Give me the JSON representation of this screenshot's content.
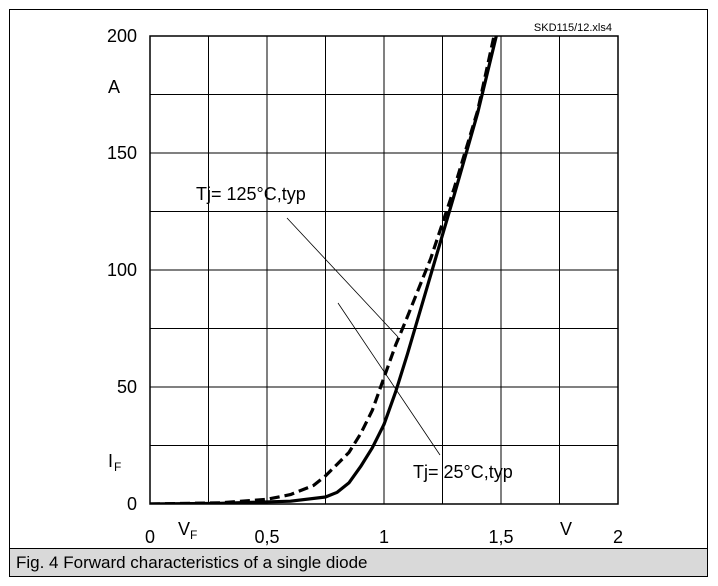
{
  "source_note": "SKD115/12.xls4",
  "caption": "Fig. 4 Forward characteristics of a single diode",
  "chart_data": {
    "type": "line",
    "title": "",
    "xlabel": "V",
    "xsymbol": "V",
    "xsubscript": "F",
    "ylabel": "A",
    "ysymbol": "I",
    "ysubscript": "F",
    "xlim": [
      0,
      2
    ],
    "ylim": [
      0,
      200
    ],
    "x_ticks": [
      0,
      0.5,
      1,
      1.5,
      2
    ],
    "x_tick_labels": [
      "0",
      "0,5",
      "1",
      "1,5",
      "2"
    ],
    "y_ticks": [
      0,
      50,
      100,
      150,
      200
    ],
    "y_tick_labels": [
      "0",
      "50",
      "100",
      "150",
      "200"
    ],
    "grid": true,
    "series": [
      {
        "name": "Tj= 25°C,typ",
        "style": "solid",
        "x": [
          0,
          0.3,
          0.6,
          0.75,
          0.8,
          0.85,
          0.9,
          0.95,
          1.0,
          1.05,
          1.1,
          1.2,
          1.3,
          1.4,
          1.48
        ],
        "y": [
          0,
          0.3,
          1.2,
          3,
          5,
          9,
          16,
          24,
          34,
          48,
          64,
          98,
          132,
          167,
          200
        ]
      },
      {
        "name": "Tj= 125°C,typ",
        "style": "dashed",
        "x": [
          0,
          0.3,
          0.5,
          0.6,
          0.7,
          0.75,
          0.8,
          0.85,
          0.9,
          0.95,
          1.0,
          1.05,
          1.1,
          1.2,
          1.3,
          1.4,
          1.47
        ],
        "y": [
          0,
          0.5,
          2,
          4,
          8,
          12,
          17,
          22,
          30,
          40,
          54,
          68,
          80,
          105,
          135,
          168,
          200
        ]
      }
    ],
    "annotations": [
      {
        "text": "Tj= 125°C,typ",
        "series_index": 1
      },
      {
        "text": "Tj= 25°C,typ",
        "series_index": 0
      }
    ],
    "colors": {
      "line": "#000000",
      "grid": "#000000",
      "caption_bg": "#d9d9d9"
    }
  }
}
